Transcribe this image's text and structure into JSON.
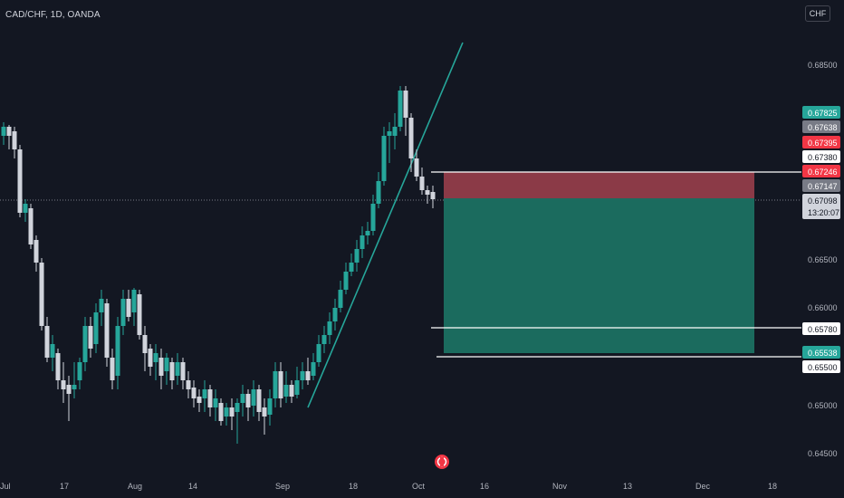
{
  "header": {
    "symbol": "CAD/CHF, 1D, OANDA",
    "currency_button": "CHF"
  },
  "colors": {
    "bg": "#131722",
    "up": "#26a69a",
    "down": "#d1d4dc",
    "stop": "#d1495b",
    "target": "#1b6b5e",
    "grid": "#787b86"
  },
  "price_axis": {
    "ticks": [
      "0.68500",
      "0.66500",
      "0.66000",
      "0.65000",
      "0.64500"
    ],
    "tags": [
      {
        "text": "0.67825",
        "bg": "#26a69a",
        "fg": "#ffffff"
      },
      {
        "text": "0.67638",
        "bg": "#787b86",
        "fg": "#ffffff"
      },
      {
        "text": "0.67395",
        "bg": "#f23645",
        "fg": "#ffffff"
      },
      {
        "text": "0.67380",
        "bg": "#ffffff",
        "fg": "#131722"
      },
      {
        "text": "0.67246",
        "bg": "#f23645",
        "fg": "#ffffff"
      },
      {
        "text": "0.67147",
        "bg": "#787b86",
        "fg": "#ffffff"
      },
      {
        "text": "0.67098",
        "bg": "#d1d4dc",
        "fg": "#131722"
      },
      {
        "text": "13:20:07",
        "bg": "#d1d4dc",
        "fg": "#131722"
      },
      {
        "text": "0.65780",
        "bg": "#ffffff",
        "fg": "#131722"
      },
      {
        "text": "0.65538",
        "bg": "#26a69a",
        "fg": "#ffffff"
      },
      {
        "text": "0.65500",
        "bg": "#ffffff",
        "fg": "#131722"
      }
    ]
  },
  "time_axis": {
    "ticks": [
      "Jul",
      "17",
      "Aug",
      "14",
      "Sep",
      "18",
      "Oct",
      "16",
      "Nov",
      "13",
      "Dec",
      "18"
    ]
  },
  "position": {
    "entry": 0.67098,
    "stop": 0.67246,
    "target": 0.65538
  },
  "icons": {
    "event": "event-flag-icon"
  }
}
